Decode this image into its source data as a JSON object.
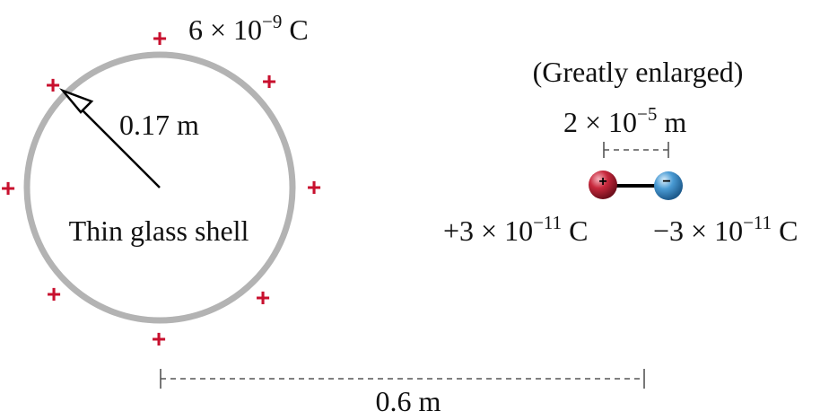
{
  "shell": {
    "charge_label": "6 × 10",
    "charge_exp": "−9",
    "charge_unit": " C",
    "radius_label": "0.17 m",
    "name_label": "Thin glass shell",
    "plus_sign": "+"
  },
  "dipole": {
    "caption": "(Greatly enlarged)",
    "separation_base": "2 × 10",
    "separation_exp": "−5",
    "separation_unit": " m",
    "positive_base": "+3 × 10",
    "positive_exp": "−11",
    "positive_unit": " C",
    "negative_base": "−3 × 10",
    "negative_exp": "−11",
    "negative_unit": " C",
    "positive_symbol": "+",
    "negative_symbol": "−"
  },
  "distance_label": "0.6 m",
  "colors": {
    "plus": "#c8102e",
    "shell": "#b3b3b3",
    "positive_ball": "#c8283c",
    "negative_ball": "#4a9bd4",
    "text": "#111111"
  }
}
